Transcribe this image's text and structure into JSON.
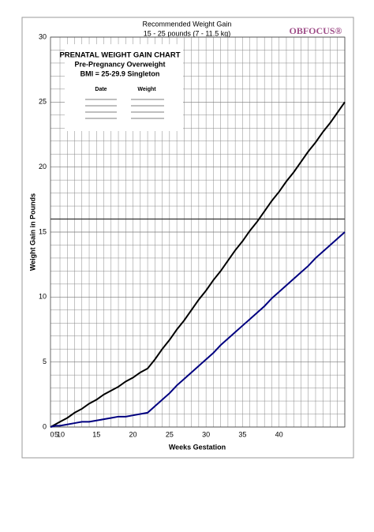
{
  "chart_data": {
    "type": "line",
    "title": "Recommended Weight Gain",
    "subtitle": "15 - 25 pounds (7 - 11.5 kg)",
    "logo": "OBFOCUS®",
    "box": {
      "title": "PRENATAL WEIGHT GAIN CHART",
      "line1": "Pre-Pregnancy Overweight",
      "line2": "BMI = 25-29.9  Singleton",
      "col1": "Date",
      "col2": "Weight"
    },
    "x_label": "Weeks Gestation",
    "y_label": "Weight Gain in Pounds",
    "categories": [
      "0",
      "5",
      "10",
      null,
      null,
      null,
      null,
      "15",
      null,
      null,
      null,
      null,
      "20",
      null,
      null,
      null,
      null,
      "25",
      null,
      null,
      null,
      null,
      "30",
      null,
      null,
      null,
      null,
      "35",
      null,
      null,
      null,
      null,
      "40",
      null,
      null,
      null,
      null,
      null,
      null,
      null,
      null,
      null
    ],
    "series": [
      {
        "color": "#000000",
        "values": [
          0,
          0.2,
          0.4,
          0.7,
          1.1,
          1.4,
          1.8,
          2.1,
          2.5,
          2.8,
          3.1,
          3.5,
          3.8,
          4.2,
          4.5,
          5.2,
          6.0,
          6.7,
          7.5,
          8.2,
          9.0,
          9.8,
          10.5,
          11.3,
          12.0,
          12.8,
          13.6,
          14.3,
          15.1,
          15.8,
          16.6,
          17.4,
          18.1,
          18.9,
          19.6,
          20.4,
          21.2,
          21.9,
          22.7,
          23.4,
          24.2,
          25
        ]
      },
      {
        "color": "#000080",
        "values": [
          0,
          0.1,
          0.1,
          0.2,
          0.3,
          0.4,
          0.4,
          0.5,
          0.6,
          0.7,
          0.8,
          0.8,
          0.9,
          1.0,
          1.1,
          1.6,
          2.1,
          2.6,
          3.2,
          3.7,
          4.2,
          4.7,
          5.2,
          5.7,
          6.3,
          6.8,
          7.3,
          7.8,
          8.3,
          8.8,
          9.3,
          9.9,
          10.4,
          10.9,
          11.4,
          11.9,
          12.4,
          13.0,
          13.5,
          14.0,
          14.5,
          15
        ]
      }
    ],
    "ylim": [
      0,
      30
    ],
    "yticks": [
      0,
      5,
      10,
      15,
      20,
      25,
      30
    ],
    "y_minor_ticks": [
      1,
      2,
      3,
      4,
      6,
      7,
      8,
      9,
      11,
      12,
      13,
      14,
      16,
      17,
      18,
      19,
      21,
      22,
      23,
      24,
      26,
      27,
      28,
      29
    ],
    "reference_line": 16,
    "grid": true
  }
}
